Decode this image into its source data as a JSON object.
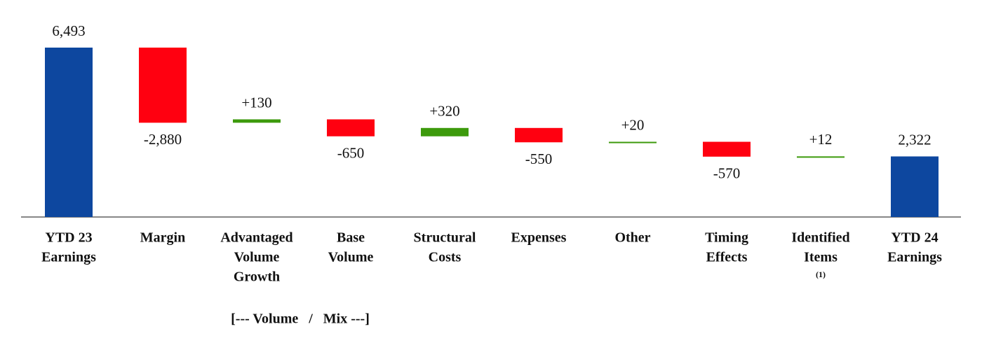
{
  "chart_data": {
    "type": "waterfall",
    "categories": [
      [
        "YTD 23",
        "Earnings"
      ],
      [
        "Margin"
      ],
      [
        "Advantaged",
        "Volume",
        "Growth"
      ],
      [
        "Base",
        "Volume"
      ],
      [
        "Structural",
        "Costs"
      ],
      [
        "Expenses"
      ],
      [
        "Other"
      ],
      [
        "Timing",
        "Effects"
      ],
      [
        "Identified",
        "Items"
      ],
      [
        "YTD 24",
        "Earnings"
      ]
    ],
    "values": [
      6493,
      -2880,
      130,
      -650,
      320,
      -550,
      20,
      -570,
      12,
      2322
    ],
    "value_labels": [
      "6,493",
      "-2,880",
      "+130",
      "-650",
      "+320",
      "-550",
      "+20",
      "-570",
      "+12",
      "2,322"
    ],
    "totals": [
      true,
      false,
      false,
      false,
      false,
      false,
      false,
      false,
      false,
      true
    ],
    "footnote": {
      "category": 8,
      "text": "(1)"
    },
    "annotation": "[--- Volume   /   Mix ---]",
    "colors": {
      "total": "#0d479f",
      "increase": "#3d9a0c",
      "decrease": "#ff0010"
    }
  }
}
